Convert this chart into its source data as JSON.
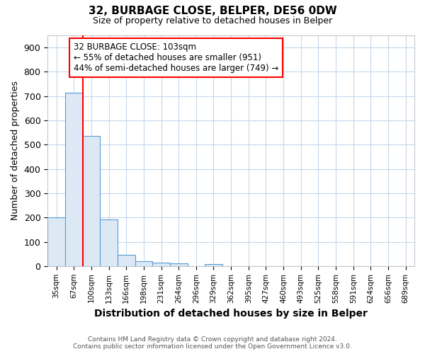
{
  "title1": "32, BURBAGE CLOSE, BELPER, DE56 0DW",
  "title2": "Size of property relative to detached houses in Belper",
  "xlabel": "Distribution of detached houses by size in Belper",
  "ylabel": "Number of detached properties",
  "categories": [
    "35sqm",
    "67sqm",
    "100sqm",
    "133sqm",
    "166sqm",
    "198sqm",
    "231sqm",
    "264sqm",
    "296sqm",
    "329sqm",
    "362sqm",
    "395sqm",
    "427sqm",
    "460sqm",
    "493sqm",
    "525sqm",
    "558sqm",
    "591sqm",
    "624sqm",
    "656sqm",
    "689sqm"
  ],
  "values": [
    200,
    715,
    535,
    193,
    45,
    20,
    15,
    10,
    0,
    8,
    0,
    0,
    0,
    0,
    0,
    0,
    0,
    0,
    0,
    0,
    0
  ],
  "bar_color": "#dce9f5",
  "bar_edge_color": "#5b9bd5",
  "red_line_x": 1.5,
  "annotation_line1": "32 BURBAGE CLOSE: 103sqm",
  "annotation_line2": "← 55% of detached houses are smaller (951)",
  "annotation_line3": "44% of semi-detached houses are larger (749) →",
  "ylim": [
    0,
    950
  ],
  "yticks": [
    0,
    100,
    200,
    300,
    400,
    500,
    600,
    700,
    800,
    900
  ],
  "footnote1": "Contains HM Land Registry data © Crown copyright and database right 2024.",
  "footnote2": "Contains public sector information licensed under the Open Government Licence v3.0.",
  "bg_color": "#ffffff",
  "plot_bg_color": "#ffffff",
  "grid_color": "#c5d8ea"
}
